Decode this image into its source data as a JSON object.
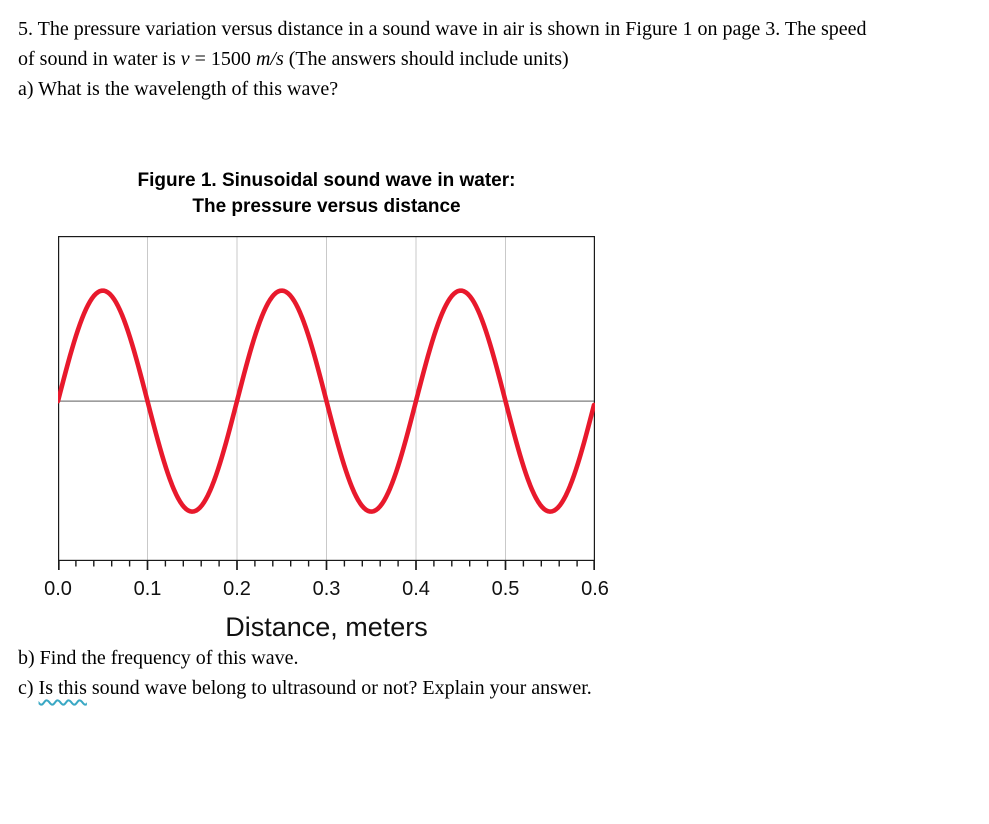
{
  "problem": {
    "line1": "5. The pressure variation versus distance in a sound wave in air is shown in Figure 1 on page 3. The speed",
    "line2_prefix": "of sound in water is ",
    "speed_symbol": "v",
    "line2_mid": " = 1500 ",
    "speed_units": "m/s",
    "line2_suffix": " (The answers should include units)",
    "part_a": "a) What is the wavelength of this wave?",
    "part_b": "b) Find the frequency of this wave.",
    "part_c_prefix": "c) ",
    "part_c_underlined": "Is this",
    "part_c_suffix": " sound wave belong to ultrasound or not? Explain your answer."
  },
  "figure": {
    "title_line1": "Figure 1. Sinusoidal sound wave in water:",
    "title_line2": "The pressure versus distance",
    "xlabel": "Distance, meters",
    "tick_labels": [
      "0.0",
      "0.1",
      "0.2",
      "0.3",
      "0.4",
      "0.5",
      "0.6"
    ]
  },
  "chart_data": {
    "type": "line",
    "title": "Figure 1. Sinusoidal sound wave in water: The pressure versus distance",
    "xlabel": "Distance, meters",
    "ylabel": "",
    "x_range": [
      0.0,
      0.6
    ],
    "x_ticks": [
      0.0,
      0.1,
      0.2,
      0.3,
      0.4,
      0.5,
      0.6
    ],
    "minor_tick_step": 0.02,
    "major_tick_step": 0.1,
    "grid": true,
    "midline_frac": 0.508,
    "wave": {
      "form": "sine",
      "equation": "p(x) = A sin(2*pi*x / 0.2)",
      "wavelength_m": 0.2,
      "cycles_shown": 3,
      "phase_at_zero": "zero crossing, rising",
      "amplitude_frac": 0.34
    },
    "key_points": {
      "zero_crossings_x": [
        0.0,
        0.1,
        0.2,
        0.3,
        0.4,
        0.5,
        0.6
      ],
      "peaks_x": [
        0.05,
        0.25,
        0.45
      ],
      "troughs_x": [
        0.15,
        0.35,
        0.55
      ]
    },
    "series": [
      {
        "name": "pressure",
        "color": "#e8192c"
      }
    ],
    "colors": {
      "grid": "#c9c9c9",
      "midline": "#7d7d7d",
      "frame": "#1a1a1a"
    }
  }
}
